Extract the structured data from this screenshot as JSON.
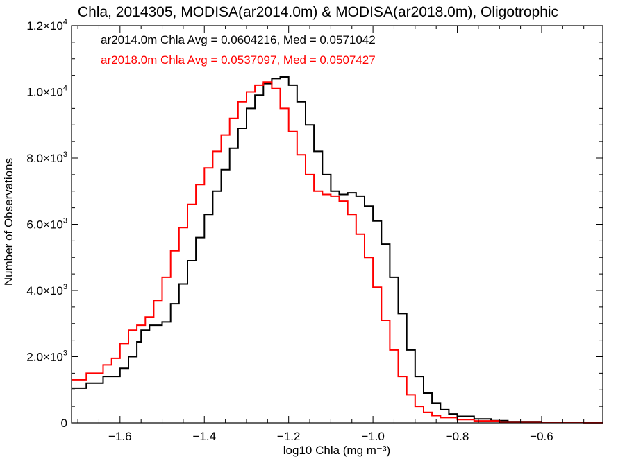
{
  "chart_data": {
    "type": "line",
    "title": "Chla, 2014305, MODISA(ar2014.0m) & MODISA(ar2018.0m), Oligotrophic",
    "xlabel": "log10 Chla (mg m⁻³)",
    "ylabel": "Number of Observations",
    "xlim": [
      -1.715,
      -0.455
    ],
    "ylim": [
      0,
      12000
    ],
    "x_ticks": [
      -1.6,
      -1.4,
      -1.2,
      -1.0,
      -0.8,
      -0.6
    ],
    "x_tick_labels": [
      "−1.6",
      "−1.4",
      "−1.2",
      "−1.0",
      "−0.8",
      "−0.6"
    ],
    "y_ticks": [
      0,
      2000,
      4000,
      6000,
      8000,
      10000,
      12000
    ],
    "y_tick_labels": [
      {
        "mant": "0",
        "exp": ""
      },
      {
        "mant": "2.0×10",
        "exp": "3"
      },
      {
        "mant": "4.0×10",
        "exp": "3"
      },
      {
        "mant": "6.0×10",
        "exp": "3"
      },
      {
        "mant": "8.0×10",
        "exp": "3"
      },
      {
        "mant": "1.0×10",
        "exp": "4"
      },
      {
        "mant": "1.2×10",
        "exp": "4"
      }
    ],
    "annotations": [
      {
        "text": "ar2014.0m Chla Avg = 0.0604216, Med = 0.0571042",
        "color": "#000000"
      },
      {
        "text": "ar2018.0m Chla Avg = 0.0537097, Med = 0.0507427",
        "color": "#ff0000"
      }
    ],
    "series": [
      {
        "color": "#000000",
        "x": [
          -1.715,
          -1.68,
          -1.64,
          -1.6,
          -1.58,
          -1.56,
          -1.55,
          -1.53,
          -1.5,
          -1.48,
          -1.46,
          -1.44,
          -1.42,
          -1.4,
          -1.38,
          -1.36,
          -1.34,
          -1.32,
          -1.3,
          -1.28,
          -1.26,
          -1.24,
          -1.22,
          -1.2,
          -1.18,
          -1.16,
          -1.14,
          -1.12,
          -1.1,
          -1.08,
          -1.06,
          -1.04,
          -1.02,
          -1.0,
          -0.98,
          -0.96,
          -0.94,
          -0.92,
          -0.9,
          -0.88,
          -0.86,
          -0.84,
          -0.82,
          -0.8,
          -0.76,
          -0.72,
          -0.68,
          -0.6,
          -0.5,
          -0.455
        ],
        "y": [
          1050,
          1200,
          1400,
          1650,
          2000,
          2450,
          2800,
          2950,
          3050,
          3600,
          4200,
          4900,
          5600,
          6300,
          7000,
          7650,
          8300,
          8900,
          9500,
          9900,
          10250,
          10400,
          10450,
          10200,
          9700,
          9000,
          8200,
          7500,
          7000,
          6900,
          6950,
          6850,
          6550,
          6100,
          5400,
          4400,
          3300,
          2200,
          1400,
          900,
          600,
          400,
          270,
          200,
          120,
          70,
          40,
          15,
          5,
          3
        ]
      },
      {
        "color": "#ff0000",
        "x": [
          -1.715,
          -1.68,
          -1.64,
          -1.62,
          -1.6,
          -1.58,
          -1.56,
          -1.54,
          -1.52,
          -1.5,
          -1.48,
          -1.46,
          -1.44,
          -1.42,
          -1.4,
          -1.38,
          -1.36,
          -1.34,
          -1.32,
          -1.3,
          -1.28,
          -1.26,
          -1.24,
          -1.22,
          -1.2,
          -1.18,
          -1.16,
          -1.14,
          -1.12,
          -1.1,
          -1.08,
          -1.06,
          -1.04,
          -1.02,
          -1.0,
          -0.98,
          -0.96,
          -0.94,
          -0.92,
          -0.9,
          -0.88,
          -0.86,
          -0.84,
          -0.8,
          -0.76,
          -0.7,
          -0.6,
          -0.5,
          -0.455
        ],
        "y": [
          1300,
          1500,
          1750,
          1950,
          2400,
          2800,
          2950,
          3200,
          3700,
          4400,
          5200,
          5900,
          6600,
          7200,
          7700,
          8200,
          8700,
          9200,
          9700,
          10000,
          10200,
          10300,
          10100,
          9500,
          8800,
          8100,
          7500,
          7000,
          6900,
          6850,
          6700,
          6300,
          5700,
          5000,
          4100,
          3100,
          2200,
          1400,
          850,
          500,
          320,
          220,
          160,
          100,
          60,
          30,
          12,
          5,
          3
        ]
      }
    ]
  }
}
